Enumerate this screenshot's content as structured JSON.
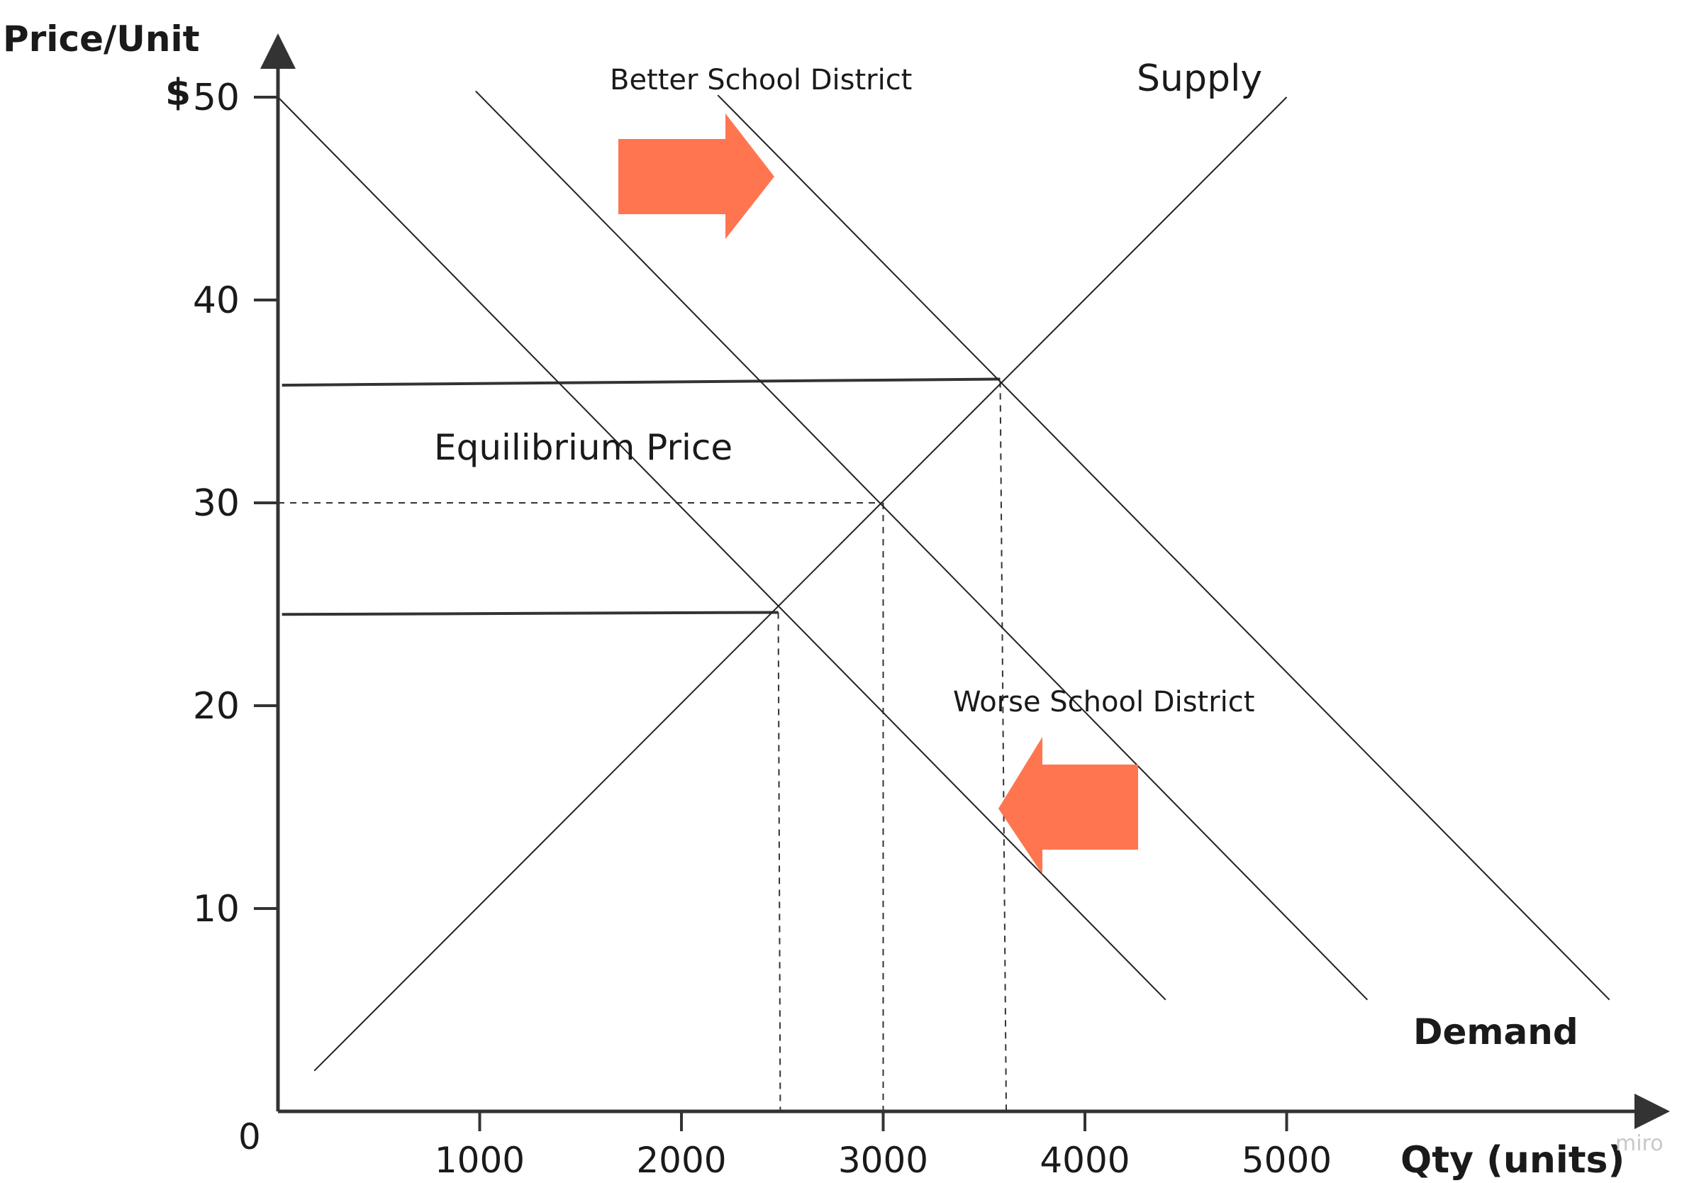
{
  "chart_data": {
    "type": "line",
    "title": "",
    "ylabel": "Price/Unit",
    "ylabel_currency": "$",
    "xlabel": "Qty (units)",
    "origin_label": "0",
    "watermark": "miro",
    "xlim": [
      0,
      6300
    ],
    "ylim": [
      0,
      52
    ],
    "x_ticks": [
      1000,
      2000,
      3000,
      4000,
      5000
    ],
    "x_tick_labels": [
      "1000",
      "2000",
      "3000",
      "4000",
      "5000"
    ],
    "y_ticks": [
      10,
      20,
      30,
      40,
      50
    ],
    "y_tick_labels": [
      "10",
      "20",
      "30",
      "40",
      "50"
    ],
    "series": [
      {
        "name": "Supply",
        "x": [
          180,
          5000
        ],
        "y": [
          2,
          50
        ],
        "color": "#222222"
      },
      {
        "name": "",
        "x": [
          0,
          4400
        ],
        "y": [
          50,
          5.5
        ],
        "color": "#222222"
      },
      {
        "name": "",
        "x": [
          980,
          5400
        ],
        "y": [
          50.3,
          5.5
        ],
        "color": "#222222"
      },
      {
        "name": "",
        "x": [
          2180,
          6600
        ],
        "y": [
          50.1,
          5.5
        ],
        "color": "#222222"
      }
    ],
    "price_lines": [
      {
        "x": [
          20,
          3580
        ],
        "y": [
          35.8,
          36.1
        ]
      },
      {
        "x": [
          20,
          2480
        ],
        "y": [
          24.5,
          24.6
        ]
      }
    ],
    "dashed_lines": [
      {
        "x": [
          0,
          3000
        ],
        "y": [
          30,
          30
        ]
      },
      {
        "x": [
          3000,
          3000
        ],
        "y": [
          30,
          0
        ]
      },
      {
        "x": [
          3580,
          3610
        ],
        "y": [
          36,
          0
        ]
      },
      {
        "x": [
          2480,
          2490
        ],
        "y": [
          24.6,
          0
        ]
      }
    ],
    "arrows": [
      {
        "direction": "right",
        "color": "#ff7550"
      },
      {
        "direction": "left",
        "color": "#ff7550"
      }
    ],
    "annotations": [
      {
        "text": "Better School District",
        "x": 2350,
        "y": 50.3
      },
      {
        "text": "Supply",
        "x": 4550,
        "y": 50.3
      },
      {
        "text": "Equilibrium Price",
        "x": 1500,
        "y": 32
      },
      {
        "text": "Worse School District",
        "x": 4050,
        "y": 19.5
      },
      {
        "text": "Demand",
        "x": 5900,
        "y": 3.8
      }
    ],
    "grid": false,
    "legend": "none"
  }
}
